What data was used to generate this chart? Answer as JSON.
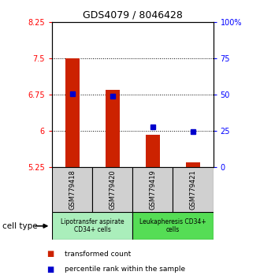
{
  "title": "GDS4079 / 8046428",
  "samples": [
    "GSM779418",
    "GSM779420",
    "GSM779419",
    "GSM779421"
  ],
  "bar_values": [
    7.5,
    6.85,
    5.93,
    5.35
  ],
  "bar_base": 5.25,
  "blue_dot_values": [
    6.78,
    6.72,
    6.08,
    5.99
  ],
  "ylim_left": [
    5.25,
    8.25
  ],
  "ylim_right": [
    0,
    100
  ],
  "yticks_left": [
    5.25,
    6.0,
    6.75,
    7.5,
    8.25
  ],
  "ytick_labels_left": [
    "5.25",
    "6",
    "6.75",
    "7.5",
    "8.25"
  ],
  "yticks_right": [
    0,
    25,
    50,
    75,
    100
  ],
  "ytick_labels_right": [
    "0",
    "25",
    "50",
    "75",
    "100%"
  ],
  "hlines": [
    6.0,
    6.75,
    7.5
  ],
  "bar_color": "#cc2200",
  "dot_color": "#0000cc",
  "cell_type_label": "cell type",
  "group1_label": "Lipotransfer aspirate\nCD34+ cells",
  "group2_label": "Leukapheresis CD34+\ncells",
  "sample_box_color": "#d0d0d0",
  "group1_color": "#aaeebb",
  "group2_color": "#55dd55",
  "legend_red_label": "transformed count",
  "legend_blue_label": "percentile rank within the sample",
  "bar_width": 0.35,
  "title_fontsize": 9,
  "tick_fontsize": 7,
  "label_fontsize": 6,
  "group_fontsize": 5.5,
  "legend_fontsize": 6.5
}
